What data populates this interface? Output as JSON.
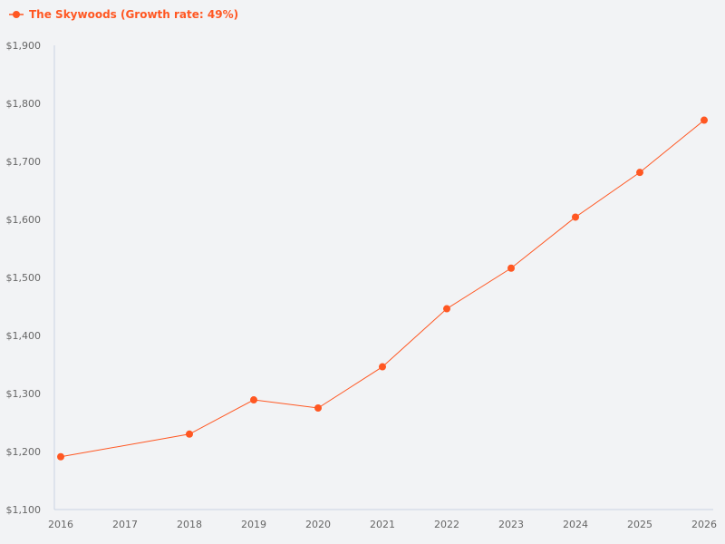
{
  "chart_data": {
    "type": "line",
    "title": "",
    "xlabel": "",
    "ylabel": "",
    "categories": [
      "2016",
      "2017",
      "2018",
      "2019",
      "2020",
      "2021",
      "2022",
      "2023",
      "2024",
      "2025",
      "2026"
    ],
    "series": [
      {
        "name": "The Skywoods (Growth rate: 49%)",
        "color": "#ff5722",
        "values": [
          1191,
          null,
          1230,
          1289,
          1275,
          1346,
          1446,
          1516,
          1604,
          1681,
          1771
        ]
      }
    ],
    "ylim": [
      1100,
      1900
    ],
    "yticks": [
      1100,
      1200,
      1300,
      1400,
      1500,
      1600,
      1700,
      1800,
      1900
    ],
    "ytick_labels": [
      "$1,100",
      "$1,200",
      "$1,300",
      "$1,400",
      "$1,500",
      "$1,600",
      "$1,700",
      "$1,800",
      "$1,900"
    ],
    "grid": false,
    "legend": "top-left",
    "axis_color": "#c9d3e3"
  }
}
